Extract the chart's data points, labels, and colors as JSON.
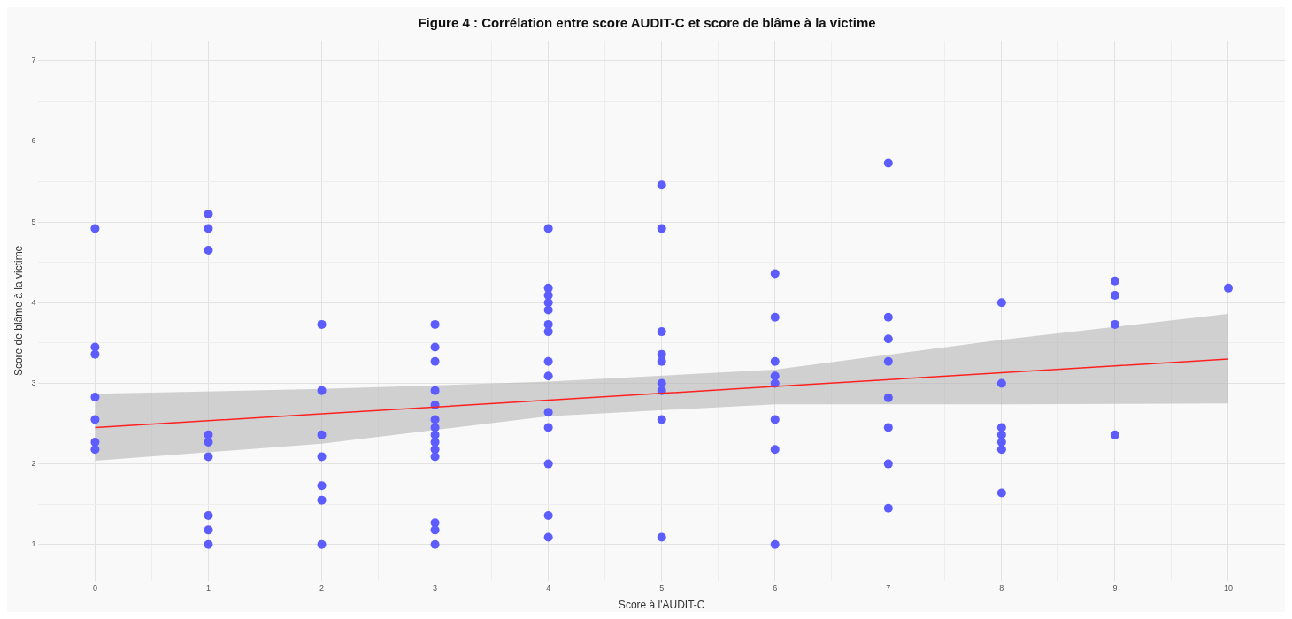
{
  "chart_data": {
    "type": "scatter",
    "title": "Figure 4 : Corrélation entre score AUDIT-C et score de blâme à la victime",
    "xlabel": "Score à l'AUDIT-C",
    "ylabel": "Score de blâme à la victime",
    "xlim": [
      -0.5,
      10.5
    ],
    "ylim": [
      0.55,
      7.25
    ],
    "xticks": [
      0,
      {
        "value": 0.5,
        "label": null
      },
      1,
      {
        "value": 1.5,
        "label": null
      },
      2,
      {
        "value": 2.5,
        "label": null
      },
      3,
      {
        "value": 3.5,
        "label": null
      },
      4,
      {
        "value": 4.5,
        "label": null
      },
      5,
      {
        "value": 5.5,
        "label": null
      },
      6,
      {
        "value": 6.5,
        "label": null
      },
      7,
      {
        "value": 7.5,
        "label": null
      },
      8,
      {
        "value": 8.5,
        "label": null
      },
      9,
      {
        "value": 9.5,
        "label": null
      },
      10
    ],
    "yticks": [
      1,
      {
        "value": 1.5,
        "label": null
      },
      2,
      {
        "value": 2.5,
        "label": null
      },
      3,
      {
        "value": 3.5,
        "label": null
      },
      4,
      {
        "value": 4.5,
        "label": null
      },
      5,
      {
        "value": 5.5,
        "label": null
      },
      6,
      {
        "value": 6.5,
        "label": null
      },
      7
    ],
    "grid": true,
    "legend": false,
    "series": [
      {
        "type": "line",
        "color": "#ff2020",
        "x": [
          0,
          2,
          4,
          6,
          8,
          10
        ],
        "values": [
          2.45,
          2.62,
          2.79,
          2.96,
          3.13,
          3.3
        ],
        "lower": [
          2.04,
          2.25,
          2.59,
          2.74,
          2.74,
          2.75
        ],
        "upper": [
          2.87,
          2.93,
          3.02,
          3.17,
          3.54,
          3.86
        ]
      },
      {
        "type": "scatter",
        "color": "#5c5cff",
        "marker": "circle",
        "x": [
          0,
          0,
          0,
          0,
          0,
          0,
          0,
          1,
          1,
          1,
          1,
          1,
          1,
          1,
          1,
          1,
          2,
          2,
          2,
          2,
          2,
          2,
          2,
          3,
          3,
          3,
          3,
          3,
          3,
          3,
          3,
          3,
          3,
          3,
          3,
          3,
          3,
          4,
          4,
          4,
          4,
          4,
          4,
          4,
          4,
          4,
          4,
          4,
          4,
          4,
          4,
          5,
          5,
          5,
          5,
          5,
          5,
          5,
          5,
          5,
          6,
          6,
          6,
          6,
          6,
          6,
          6,
          6,
          7,
          7,
          7,
          7,
          7,
          7,
          7,
          7,
          8,
          8,
          8,
          8,
          8,
          8,
          8,
          9,
          9,
          9,
          9,
          10
        ],
        "values": [
          4.92,
          3.45,
          3.36,
          2.83,
          2.55,
          2.27,
          2.18,
          5.1,
          4.92,
          4.65,
          2.36,
          2.27,
          2.09,
          1.36,
          1.18,
          1.0,
          3.73,
          2.91,
          2.36,
          2.09,
          1.73,
          1.55,
          1.0,
          3.73,
          3.45,
          3.27,
          2.91,
          2.73,
          2.55,
          2.45,
          2.36,
          2.27,
          2.18,
          2.09,
          1.27,
          1.18,
          1.0,
          4.92,
          4.18,
          4.09,
          4.0,
          3.91,
          3.73,
          3.64,
          3.27,
          3.09,
          2.64,
          2.45,
          2.0,
          1.36,
          1.09,
          5.46,
          4.92,
          3.64,
          3.36,
          3.27,
          3.0,
          2.91,
          2.55,
          1.09,
          4.36,
          3.82,
          3.27,
          3.09,
          3.0,
          2.55,
          2.18,
          1.0,
          5.73,
          3.82,
          3.55,
          3.27,
          2.82,
          2.45,
          2.0,
          1.45,
          4.0,
          3.0,
          2.45,
          2.36,
          2.27,
          2.18,
          1.64,
          4.27,
          4.09,
          3.73,
          2.36,
          4.18
        ]
      }
    ]
  }
}
